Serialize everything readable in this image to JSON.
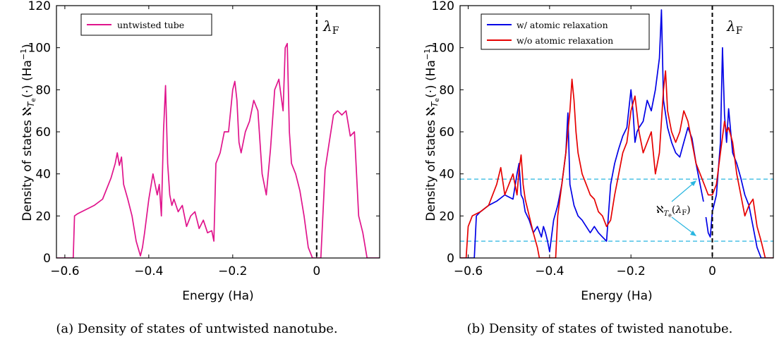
{
  "figure": {
    "panels": [
      {
        "caption": "(a) Density of states of untwisted nanotube.",
        "xlabel": "Energy (Ha)",
        "ylabel": "Density of states ℵ_{T_e}(·) (Ha⁻¹)",
        "fermi_label": "λF",
        "legend": [
          "untwisted tube"
        ]
      },
      {
        "caption": "(b) Density of states of twisted nanotube.",
        "xlabel": "Energy (Ha)",
        "ylabel": "Density of states ℵ_{T_e}(·) (Ha⁻¹)",
        "fermi_label": "λF",
        "legend": [
          "w/ atomic relaxation",
          "w/o atomic relaxation"
        ],
        "annotation": "ℵ_{Te}(λF)"
      }
    ]
  },
  "chart_data": [
    {
      "type": "line",
      "title": "",
      "xlabel": "Energy (Ha)",
      "ylabel": "Density of states ℵ_{T_e}(·) (Ha⁻¹)",
      "xlim": [
        -0.62,
        0.15
      ],
      "ylim": [
        0,
        120
      ],
      "xticks": [
        -0.6,
        -0.4,
        -0.2,
        0
      ],
      "xtick_labels": [
        "−0.6",
        "−0.4",
        "−0.2",
        "0"
      ],
      "yticks": [
        0,
        20,
        40,
        60,
        80,
        100,
        120
      ],
      "grid": false,
      "legend_position": "top-left",
      "vlines": [
        {
          "x": 0,
          "label": "λF",
          "style": "dashed",
          "color": "#000000"
        }
      ],
      "series": [
        {
          "name": "untwisted tube",
          "color": "#e0148c",
          "x": [
            -0.62,
            -0.58,
            -0.577,
            -0.57,
            -0.55,
            -0.53,
            -0.51,
            -0.49,
            -0.48,
            -0.475,
            -0.47,
            -0.465,
            -0.46,
            -0.45,
            -0.44,
            -0.43,
            -0.42,
            -0.415,
            -0.41,
            -0.4,
            -0.39,
            -0.38,
            -0.375,
            -0.37,
            -0.365,
            -0.36,
            -0.355,
            -0.35,
            -0.345,
            -0.34,
            -0.33,
            -0.32,
            -0.31,
            -0.3,
            -0.29,
            -0.28,
            -0.27,
            -0.26,
            -0.25,
            -0.245,
            -0.24,
            -0.23,
            -0.22,
            -0.21,
            -0.2,
            -0.195,
            -0.19,
            -0.185,
            -0.18,
            -0.17,
            -0.16,
            -0.15,
            -0.14,
            -0.13,
            -0.12,
            -0.11,
            -0.1,
            -0.09,
            -0.08,
            -0.075,
            -0.07,
            -0.065,
            -0.06,
            -0.05,
            -0.04,
            -0.03,
            -0.02,
            -0.01,
            -0.005,
            0,
            0.005,
            0.01,
            0.02,
            0.03,
            0.04,
            0.05,
            0.06,
            0.07,
            0.08,
            0.09,
            0.1,
            0.11,
            0.12,
            0.13,
            0.15
          ],
          "y": [
            0,
            0,
            20,
            21,
            23,
            25,
            28,
            38,
            45,
            50,
            44,
            48,
            35,
            28,
            20,
            8,
            1,
            5,
            12,
            28,
            40,
            30,
            35,
            20,
            60,
            82,
            45,
            30,
            25,
            28,
            22,
            25,
            15,
            20,
            22,
            14,
            18,
            12,
            13,
            8,
            45,
            50,
            60,
            60,
            80,
            84,
            75,
            55,
            50,
            60,
            65,
            75,
            70,
            40,
            30,
            52,
            80,
            85,
            70,
            100,
            102,
            60,
            45,
            40,
            32,
            20,
            5,
            0,
            0,
            0,
            0,
            0,
            42,
            55,
            68,
            70,
            68,
            70,
            58,
            60,
            20,
            12,
            0,
            0,
            0
          ]
        }
      ]
    },
    {
      "type": "line",
      "title": "",
      "xlabel": "Energy (Ha)",
      "ylabel": "Density of states ℵ_{T_e}(·) (Ha⁻¹)",
      "xlim": [
        -0.62,
        0.15
      ],
      "ylim": [
        0,
        120
      ],
      "xticks": [
        -0.6,
        -0.4,
        -0.2,
        0
      ],
      "xtick_labels": [
        "−0.6",
        "−0.4",
        "−0.2",
        "0"
      ],
      "yticks": [
        0,
        20,
        40,
        60,
        80,
        100,
        120
      ],
      "grid": false,
      "legend_position": "top-left",
      "vlines": [
        {
          "x": 0,
          "label": "λF",
          "style": "dashed",
          "color": "#000000"
        }
      ],
      "hlines": [
        {
          "y": 37.5,
          "style": "dashed",
          "color": "#29b6e0"
        },
        {
          "y": 8,
          "style": "dashed",
          "color": "#29b6e0"
        }
      ],
      "series": [
        {
          "name": "w/ atomic relaxation",
          "color": "#0000e6",
          "x": [
            -0.62,
            -0.585,
            -0.58,
            -0.57,
            -0.55,
            -0.53,
            -0.51,
            -0.49,
            -0.48,
            -0.475,
            -0.47,
            -0.465,
            -0.46,
            -0.45,
            -0.44,
            -0.43,
            -0.42,
            -0.415,
            -0.41,
            -0.405,
            -0.4,
            -0.39,
            -0.38,
            -0.37,
            -0.36,
            -0.355,
            -0.35,
            -0.345,
            -0.34,
            -0.33,
            -0.32,
            -0.31,
            -0.3,
            -0.29,
            -0.28,
            -0.27,
            -0.26,
            -0.25,
            -0.24,
            -0.23,
            -0.22,
            -0.21,
            -0.2,
            -0.195,
            -0.19,
            -0.185,
            -0.18,
            -0.17,
            -0.16,
            -0.15,
            -0.14,
            -0.13,
            -0.125,
            -0.12,
            -0.11,
            -0.1,
            -0.09,
            -0.08,
            -0.07,
            -0.06,
            -0.05,
            -0.04,
            -0.03,
            -0.02,
            -0.01,
            -0.005,
            0,
            0.01,
            0.02,
            0.025,
            0.03,
            0.035,
            0.04,
            0.05,
            0.06,
            0.07,
            0.08,
            0.09,
            0.1,
            0.11,
            0.12,
            0.13,
            0.15
          ],
          "y": [
            0,
            0,
            20,
            22,
            25,
            27,
            30,
            28,
            40,
            45,
            30,
            28,
            22,
            18,
            12,
            15,
            10,
            15,
            12,
            8,
            3,
            18,
            25,
            35,
            50,
            69,
            35,
            30,
            25,
            20,
            18,
            15,
            12,
            15,
            12,
            10,
            8,
            35,
            45,
            52,
            58,
            62,
            80,
            70,
            55,
            60,
            62,
            65,
            75,
            70,
            80,
            95,
            118,
            75,
            62,
            55,
            50,
            48,
            55,
            62,
            57,
            45,
            35,
            25,
            12,
            10,
            22,
            30,
            55,
            100,
            68,
            55,
            71,
            50,
            45,
            38,
            30,
            25,
            15,
            5,
            0,
            0,
            0
          ]
        },
        {
          "name": "w/o atomic relaxation",
          "color": "#e60000",
          "x": [
            -0.62,
            -0.605,
            -0.6,
            -0.59,
            -0.57,
            -0.55,
            -0.53,
            -0.52,
            -0.51,
            -0.5,
            -0.49,
            -0.48,
            -0.475,
            -0.47,
            -0.465,
            -0.46,
            -0.45,
            -0.44,
            -0.43,
            -0.425,
            -0.42,
            -0.41,
            -0.4,
            -0.39,
            -0.385,
            -0.38,
            -0.37,
            -0.36,
            -0.35,
            -0.345,
            -0.34,
            -0.335,
            -0.33,
            -0.32,
            -0.31,
            -0.3,
            -0.29,
            -0.28,
            -0.27,
            -0.26,
            -0.25,
            -0.24,
            -0.23,
            -0.22,
            -0.21,
            -0.2,
            -0.19,
            -0.18,
            -0.17,
            -0.16,
            -0.15,
            -0.14,
            -0.13,
            -0.12,
            -0.115,
            -0.11,
            -0.1,
            -0.09,
            -0.08,
            -0.07,
            -0.06,
            -0.05,
            -0.04,
            -0.03,
            -0.02,
            -0.01,
            0,
            0.01,
            0.02,
            0.03,
            0.035,
            0.04,
            0.05,
            0.06,
            0.07,
            0.08,
            0.09,
            0.1,
            0.11,
            0.12,
            0.13,
            0.15
          ],
          "y": [
            0,
            0,
            15,
            20,
            22,
            25,
            35,
            43,
            30,
            35,
            40,
            30,
            42,
            49,
            35,
            28,
            20,
            12,
            5,
            0,
            0,
            0,
            0,
            0,
            0,
            20,
            35,
            50,
            70,
            85,
            75,
            60,
            50,
            40,
            35,
            30,
            28,
            22,
            20,
            15,
            18,
            30,
            40,
            50,
            55,
            70,
            77,
            60,
            50,
            55,
            60,
            40,
            50,
            80,
            89,
            70,
            60,
            55,
            60,
            70,
            65,
            55,
            45,
            40,
            35,
            30,
            30,
            35,
            50,
            65,
            60,
            62,
            55,
            40,
            30,
            20,
            25,
            28,
            15,
            8,
            0,
            0
          ]
        }
      ]
    }
  ]
}
